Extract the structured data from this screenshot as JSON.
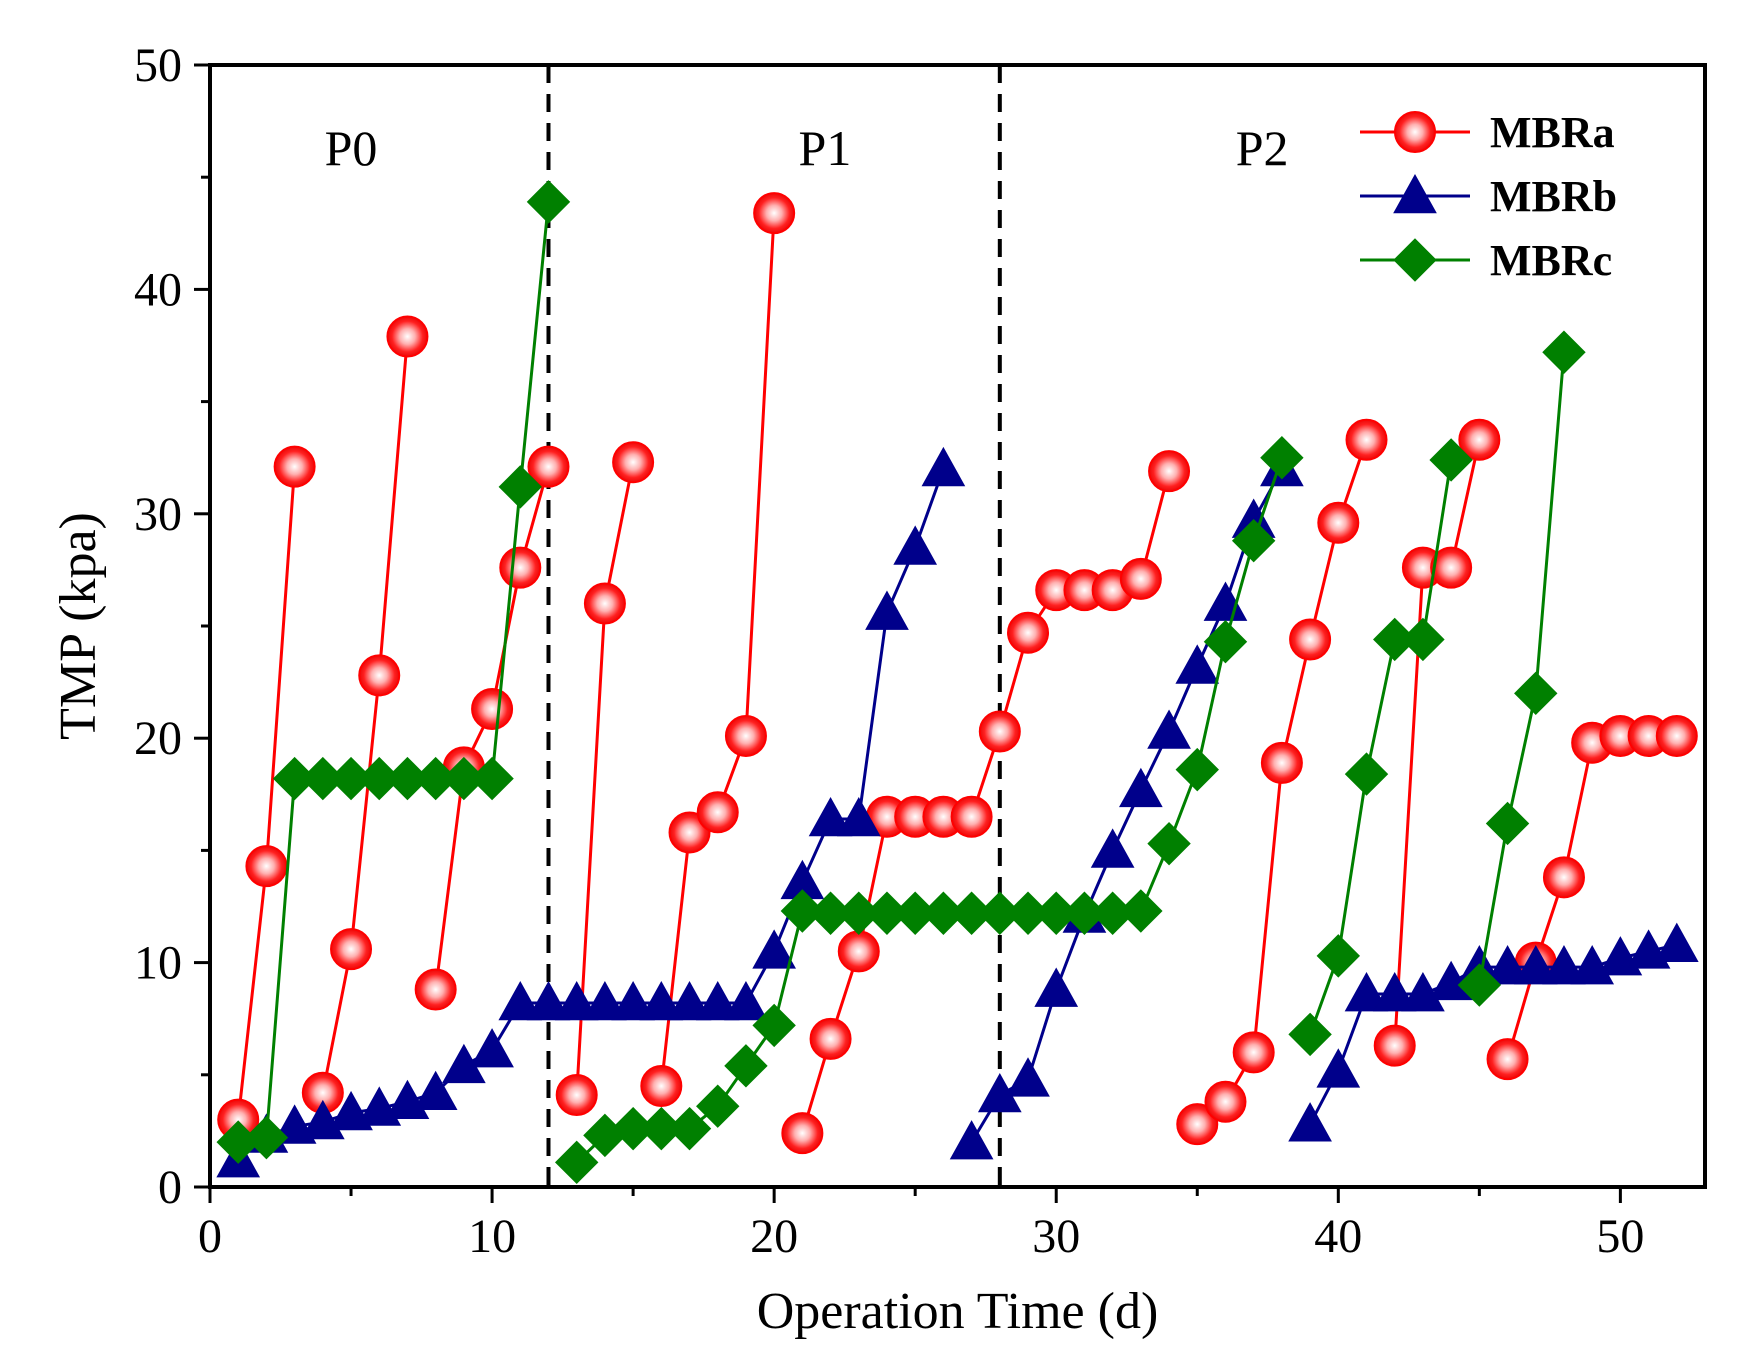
{
  "chart_data": {
    "type": "line",
    "title": "",
    "xlabel": "Operation Time (d)",
    "ylabel": "TMP (kpa)",
    "xlim": [
      0,
      53
    ],
    "ylim": [
      0,
      50
    ],
    "xticks": [
      0,
      10,
      20,
      30,
      40,
      50
    ],
    "yticks": [
      0,
      10,
      20,
      30,
      40,
      50
    ],
    "grid": false,
    "legend_position": "top-right",
    "phase_dividers": [
      12,
      28
    ],
    "phases": [
      {
        "label": "P0",
        "x": 5
      },
      {
        "label": "P1",
        "x": 21.8
      },
      {
        "label": "P2",
        "x": 37.3
      }
    ],
    "series": [
      {
        "name": "MBRa",
        "color": "#ff0000",
        "marker": "circle",
        "segments": [
          [
            [
              1,
              3.0
            ],
            [
              2,
              14.3
            ],
            [
              3,
              32.1
            ]
          ],
          [
            [
              4,
              4.2
            ],
            [
              5,
              10.6
            ],
            [
              6,
              22.8
            ],
            [
              7,
              37.9
            ]
          ],
          [
            [
              8,
              8.8
            ],
            [
              9,
              18.7
            ],
            [
              10,
              21.3
            ],
            [
              11,
              27.6
            ],
            [
              12,
              32.1
            ]
          ],
          [
            [
              13,
              4.1
            ],
            [
              14,
              26.0
            ],
            [
              15,
              32.3
            ]
          ],
          [
            [
              16,
              4.5
            ],
            [
              17,
              15.8
            ],
            [
              18,
              16.7
            ],
            [
              19,
              20.1
            ],
            [
              20,
              43.4
            ]
          ],
          [
            [
              21,
              2.4
            ],
            [
              22,
              6.6
            ],
            [
              23,
              10.5
            ],
            [
              24,
              16.5
            ],
            [
              25,
              16.5
            ],
            [
              26,
              16.5
            ],
            [
              27,
              16.5
            ],
            [
              28,
              20.3
            ],
            [
              29,
              24.7
            ],
            [
              30,
              26.6
            ],
            [
              31,
              26.6
            ],
            [
              32,
              26.6
            ],
            [
              33,
              27.1
            ],
            [
              34,
              31.9
            ]
          ],
          [
            [
              35,
              2.8
            ],
            [
              36,
              3.8
            ],
            [
              37,
              6.0
            ],
            [
              38,
              18.9
            ],
            [
              39,
              24.4
            ],
            [
              40,
              29.6
            ],
            [
              41,
              33.3
            ]
          ],
          [
            [
              42,
              6.3
            ],
            [
              43,
              27.6
            ],
            [
              44,
              27.6
            ],
            [
              45,
              33.3
            ]
          ],
          [
            [
              46,
              5.7
            ],
            [
              47,
              10.0
            ],
            [
              48,
              13.8
            ],
            [
              49,
              19.8
            ],
            [
              50,
              20.1
            ],
            [
              51,
              20.1
            ],
            [
              52,
              20.1
            ]
          ]
        ]
      },
      {
        "name": "MBRb",
        "color": "#00008b",
        "marker": "triangle",
        "segments": [
          [
            [
              1,
              1.2
            ],
            [
              2,
              2.3
            ],
            [
              3,
              2.7
            ],
            [
              4,
              2.9
            ],
            [
              5,
              3.3
            ],
            [
              6,
              3.5
            ],
            [
              7,
              3.8
            ],
            [
              8,
              4.2
            ],
            [
              9,
              5.4
            ],
            [
              10,
              6.1
            ],
            [
              11,
              8.2
            ],
            [
              12,
              8.2
            ],
            [
              13,
              8.2
            ],
            [
              14,
              8.2
            ],
            [
              15,
              8.2
            ],
            [
              16,
              8.2
            ],
            [
              17,
              8.2
            ],
            [
              18,
              8.2
            ],
            [
              19,
              8.2
            ],
            [
              20,
              10.5
            ],
            [
              21,
              13.6
            ],
            [
              22,
              16.4
            ],
            [
              23,
              16.4
            ],
            [
              24,
              25.6
            ],
            [
              25,
              28.5
            ],
            [
              26,
              32.0
            ]
          ],
          [
            [
              27,
              2.0
            ],
            [
              28,
              4.1
            ],
            [
              29,
              4.8
            ],
            [
              30,
              8.8
            ],
            [
              31,
              12.1
            ],
            [
              32,
              15.0
            ],
            [
              33,
              17.7
            ],
            [
              34,
              20.3
            ],
            [
              35,
              23.2
            ],
            [
              36,
              26.0
            ],
            [
              37,
              29.7
            ],
            [
              38,
              32.0
            ]
          ],
          [
            [
              39,
              2.8
            ],
            [
              40,
              5.2
            ],
            [
              41,
              8.6
            ],
            [
              42,
              8.6
            ],
            [
              43,
              8.6
            ],
            [
              44,
              9.1
            ],
            [
              45,
              9.8
            ],
            [
              46,
              9.8
            ],
            [
              47,
              9.8
            ],
            [
              48,
              9.8
            ],
            [
              49,
              9.8
            ],
            [
              50,
              10.2
            ],
            [
              51,
              10.5
            ],
            [
              52,
              10.8
            ]
          ]
        ]
      },
      {
        "name": "MBRc",
        "color": "#008000",
        "marker": "diamond",
        "segments": [
          [
            [
              1,
              2.0
            ],
            [
              2,
              2.2
            ],
            [
              3,
              18.2
            ],
            [
              4,
              18.2
            ],
            [
              5,
              18.2
            ],
            [
              6,
              18.2
            ],
            [
              7,
              18.2
            ],
            [
              8,
              18.2
            ],
            [
              9,
              18.2
            ],
            [
              10,
              18.2
            ],
            [
              11,
              31.2
            ],
            [
              12,
              43.9
            ]
          ],
          [
            [
              13,
              1.1
            ],
            [
              14,
              2.3
            ],
            [
              15,
              2.6
            ],
            [
              16,
              2.6
            ],
            [
              17,
              2.6
            ],
            [
              18,
              3.6
            ],
            [
              19,
              5.4
            ],
            [
              20,
              7.2
            ],
            [
              21,
              12.3
            ],
            [
              22,
              12.2
            ],
            [
              23,
              12.2
            ],
            [
              24,
              12.2
            ],
            [
              25,
              12.2
            ],
            [
              26,
              12.2
            ],
            [
              27,
              12.2
            ],
            [
              28,
              12.2
            ],
            [
              29,
              12.2
            ],
            [
              30,
              12.2
            ],
            [
              31,
              12.2
            ],
            [
              32,
              12.2
            ],
            [
              33,
              12.3
            ],
            [
              34,
              15.3
            ],
            [
              35,
              18.6
            ],
            [
              36,
              24.3
            ],
            [
              37,
              28.8
            ],
            [
              38,
              32.5
            ]
          ],
          [
            [
              39,
              6.8
            ],
            [
              40,
              10.3
            ],
            [
              41,
              18.4
            ],
            [
              42,
              24.4
            ],
            [
              43,
              24.4
            ],
            [
              44,
              32.4
            ]
          ],
          [
            [
              45,
              9.0
            ],
            [
              46,
              16.2
            ],
            [
              47,
              22.0
            ],
            [
              48,
              37.2
            ]
          ]
        ]
      }
    ]
  }
}
